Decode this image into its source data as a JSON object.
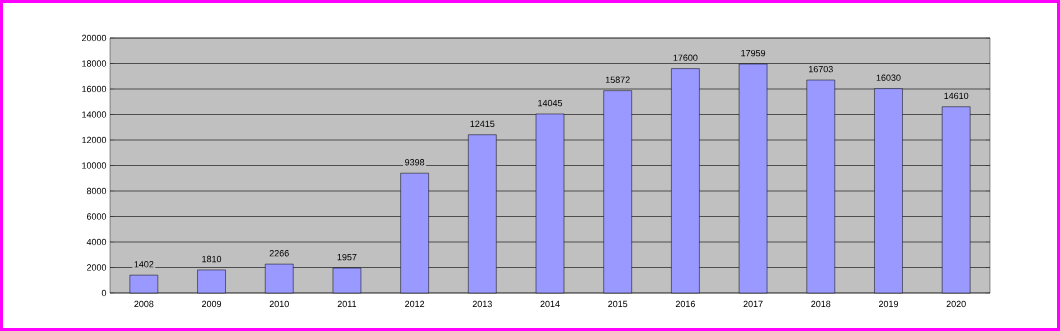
{
  "chart_data": {
    "type": "bar",
    "categories": [
      "2008",
      "2009",
      "2010",
      "2011",
      "2012",
      "2013",
      "2014",
      "2015",
      "2016",
      "2017",
      "2018",
      "2019",
      "2020"
    ],
    "values": [
      1402,
      1810,
      2266,
      1957,
      9398,
      12415,
      14045,
      15872,
      17600,
      17959,
      16703,
      16030,
      14610
    ],
    "color": "#9999ff",
    "ylim": [
      0,
      20000
    ],
    "yticks": [
      0,
      2000,
      4000,
      6000,
      8000,
      10000,
      12000,
      14000,
      16000,
      18000,
      20000
    ],
    "grid": "y",
    "data_labels": true
  }
}
